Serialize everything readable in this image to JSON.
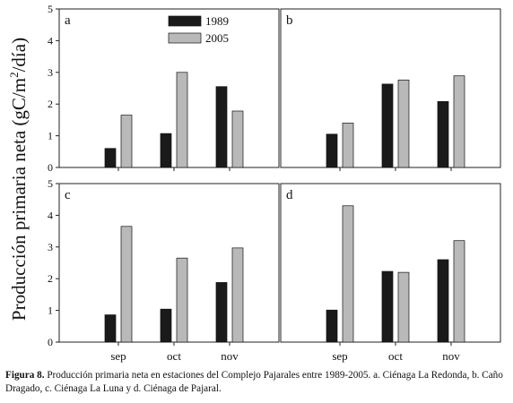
{
  "chart_data": {
    "type": "bar",
    "ylabel_parts": {
      "before": "Producción primaria neta (gC/m",
      "sup": "2",
      "after": "/día)"
    },
    "ylim": [
      0,
      5
    ],
    "yticks": [
      "0",
      "1",
      "2",
      "3",
      "4",
      "5"
    ],
    "categories": [
      "sep",
      "oct",
      "nov"
    ],
    "legend": {
      "placement": "top-center of panel a",
      "items": [
        "1989",
        "2005"
      ]
    },
    "colors": {
      "1989": "#1a1a1a",
      "2005": "#b9b9b9"
    },
    "panels": [
      {
        "label": "a",
        "series": [
          {
            "name": "1989",
            "values": [
              0.6,
              1.07,
              2.55
            ]
          },
          {
            "name": "2005",
            "values": [
              1.65,
              3.0,
              1.78
            ]
          }
        ]
      },
      {
        "label": "b",
        "series": [
          {
            "name": "1989",
            "values": [
              1.05,
              2.63,
              2.08
            ]
          },
          {
            "name": "2005",
            "values": [
              1.4,
              2.76,
              2.89
            ]
          }
        ]
      },
      {
        "label": "c",
        "series": [
          {
            "name": "1989",
            "values": [
              0.86,
              1.04,
              1.88
            ]
          },
          {
            "name": "2005",
            "values": [
              3.65,
              2.65,
              2.97
            ]
          }
        ]
      },
      {
        "label": "d",
        "series": [
          {
            "name": "1989",
            "values": [
              1.01,
              2.23,
              2.6
            ]
          },
          {
            "name": "2005",
            "values": [
              4.3,
              2.2,
              3.2
            ]
          }
        ]
      }
    ]
  },
  "caption": {
    "label": "Figura 8.",
    "text": " Producción primaria neta en estaciones del Complejo Pajarales entre 1989-2005. a. Ciénaga La Redonda, b. Caño Dragado, c. Ciénaga La Luna y d. Ciénaga de Pajaral."
  }
}
